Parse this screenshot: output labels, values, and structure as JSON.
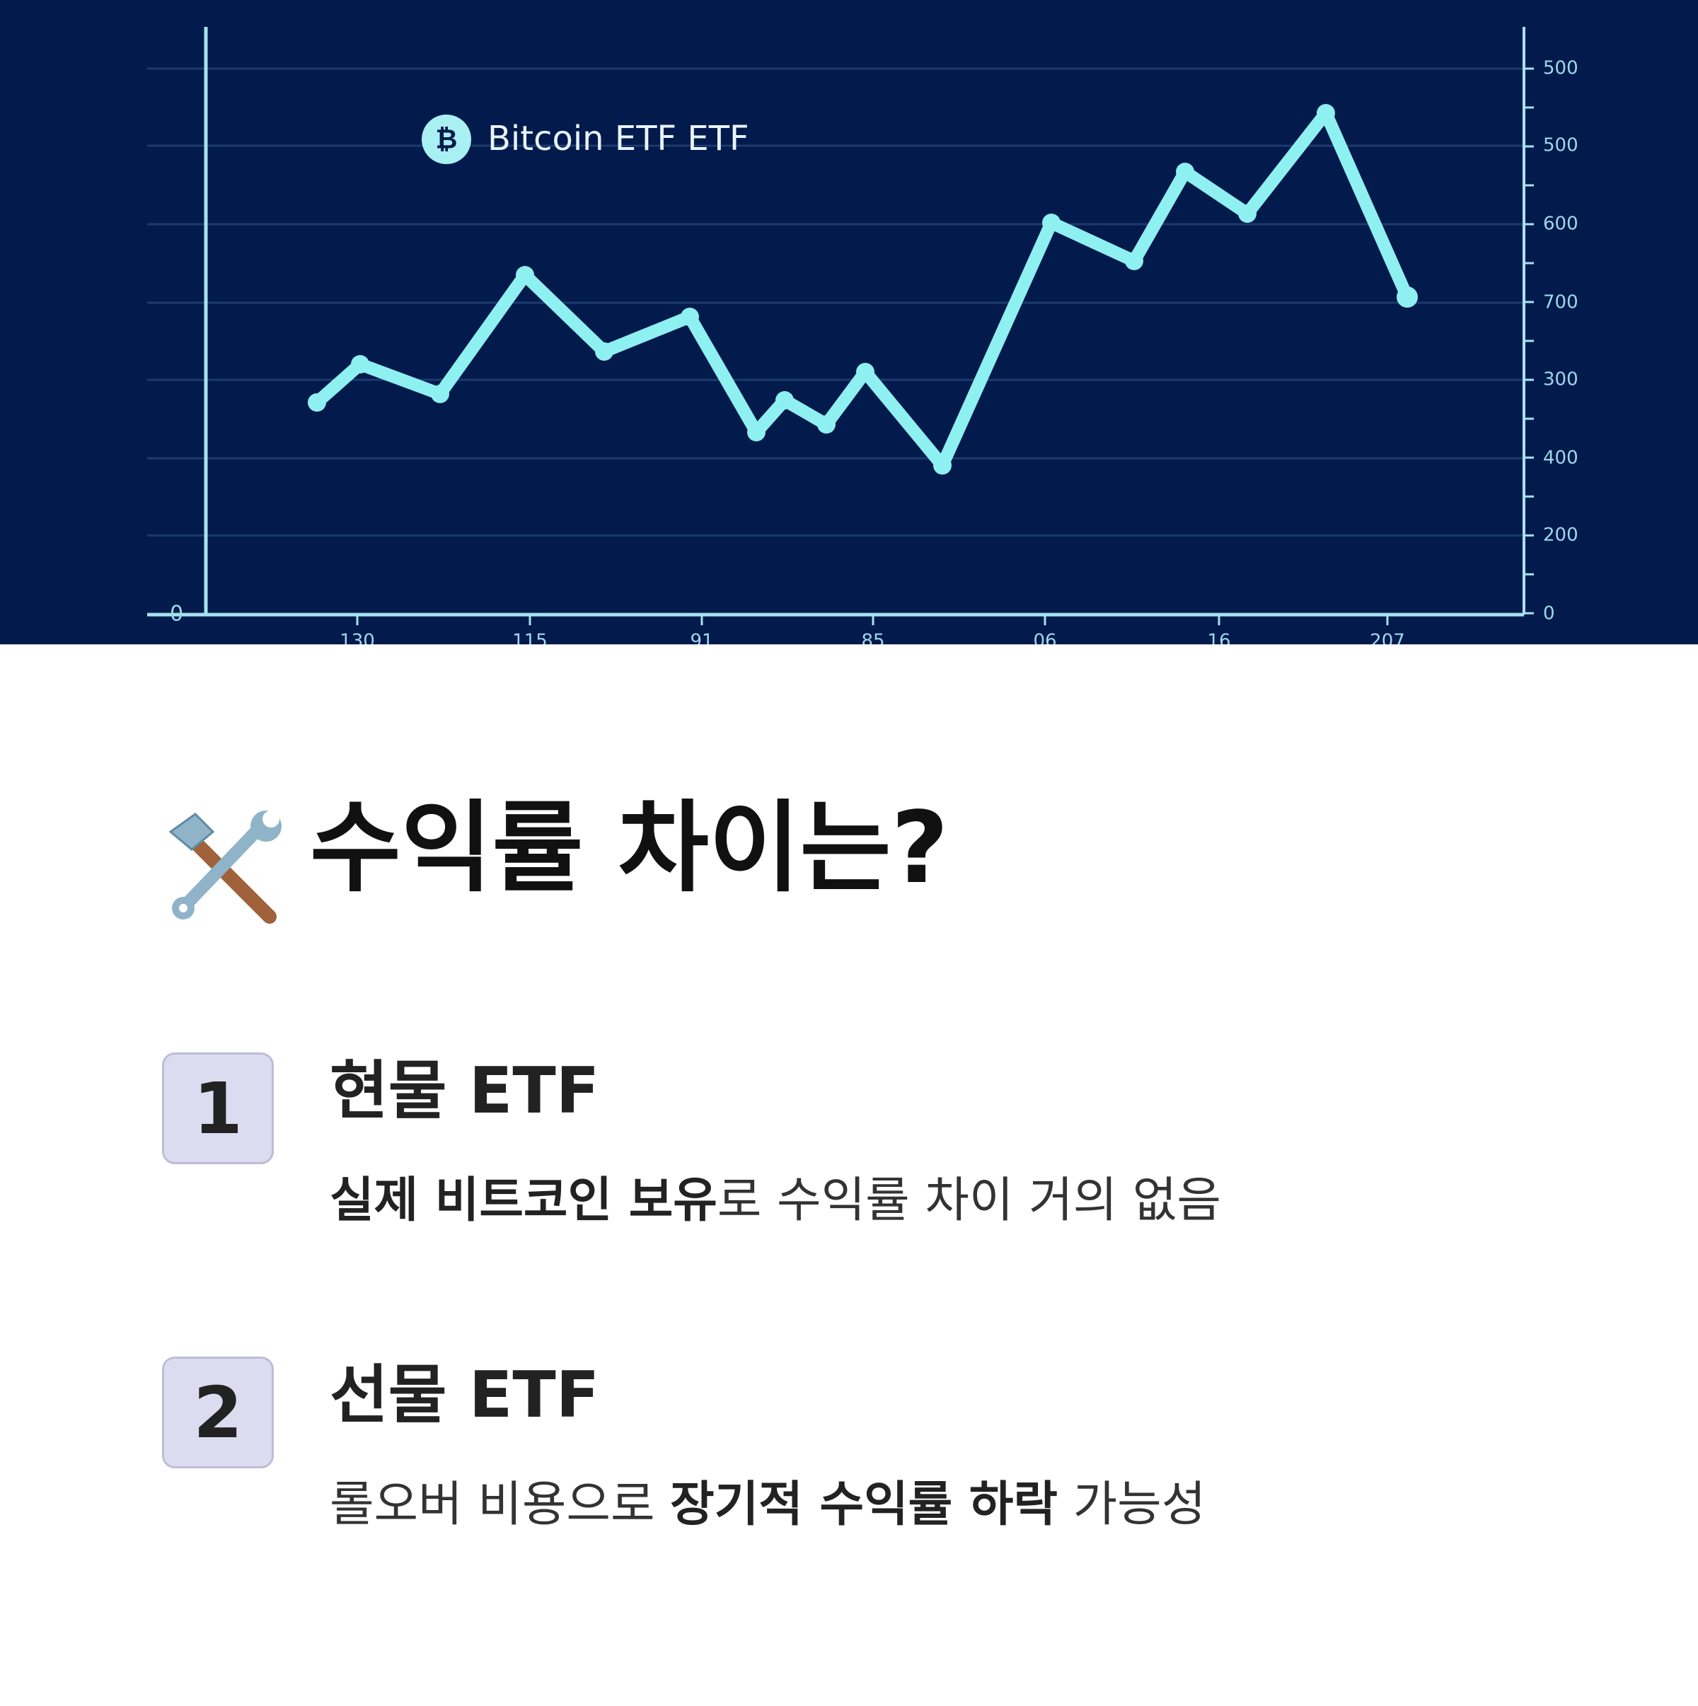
{
  "hero_chart": {
    "legend": "Bitcoin ETF ETF",
    "left_label": "0",
    "right_labels": [
      "500",
      "500",
      "600",
      "700",
      "300",
      "400",
      "200",
      "0"
    ],
    "bottom_labels": [
      "130",
      "115",
      "91",
      "85",
      "06",
      "16",
      "207"
    ]
  },
  "heading": {
    "title": "수익률 차이는?"
  },
  "items": [
    {
      "number": "1",
      "title": "현물 ETF",
      "description": [
        {
          "text": "실제 비트코인 보유",
          "bold": true
        },
        {
          "text": "로 수익률 차이 거의 없음",
          "bold": false
        }
      ]
    },
    {
      "number": "2",
      "title": "선물 ETF",
      "description": [
        {
          "text": "롤오버 비용으로 ",
          "bold": false
        },
        {
          "text": "장기적 수익률 하락",
          "bold": true
        },
        {
          "text": " 가능성",
          "bold": false
        }
      ]
    }
  ]
}
